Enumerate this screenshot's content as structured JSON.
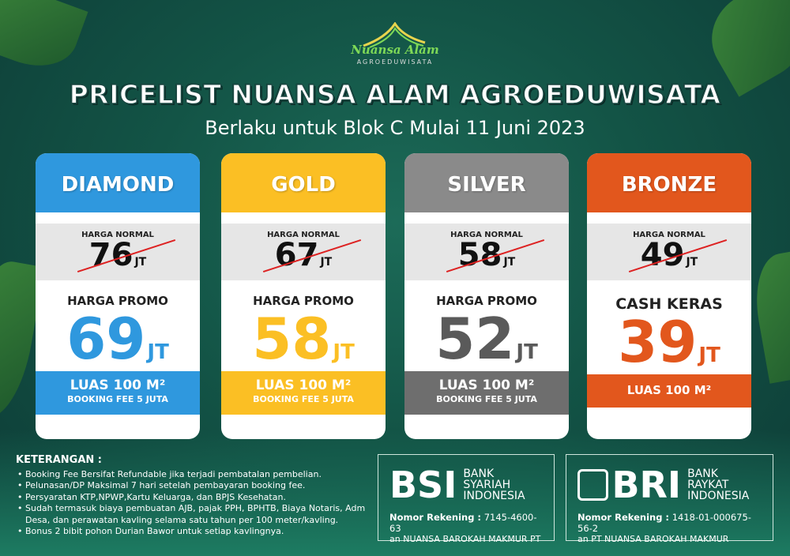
{
  "logo": {
    "brand": "Nuansa Alam",
    "sub": "AGROEDUWISATA"
  },
  "title": "PRICELIST NUANSA ALAM AGROEDUWISATA",
  "subtitle": "Berlaku untuk Blok C Mulai 11 Juni 2023",
  "colors": {
    "diamond": "#2f98de",
    "gold": "#fbbf24",
    "silver": "#8a8a8a",
    "bronze": "#e2571d",
    "background": "#135446"
  },
  "cards": [
    {
      "name": "DIAMOND",
      "normal_label": "HARGA NORMAL",
      "normal_price": "76",
      "unit": "JT",
      "promo_label": "HARGA PROMO",
      "promo_price": "69",
      "area": "LUAS 100 M²",
      "booking": "BOOKING FEE 5 JUTA"
    },
    {
      "name": "GOLD",
      "normal_label": "HARGA NORMAL",
      "normal_price": "67",
      "unit": "JT",
      "promo_label": "HARGA PROMO",
      "promo_price": "58",
      "area": "LUAS 100 M²",
      "booking": "BOOKING FEE 5 JUTA"
    },
    {
      "name": "SILVER",
      "normal_label": "HARGA NORMAL",
      "normal_price": "58",
      "unit": "JT",
      "promo_label": "HARGA PROMO",
      "promo_price": "52",
      "area": "LUAS 100 M²",
      "booking": "BOOKING FEE 5 JUTA"
    },
    {
      "name": "BRONZE",
      "normal_label": "HARGA NORMAL",
      "normal_price": "49",
      "unit": "JT",
      "promo_label": "CASH KERAS",
      "promo_price": "39",
      "area": "LUAS 100 M²"
    }
  ],
  "notes": {
    "title": "KETERANGAN :",
    "items": [
      "Booking Fee Bersifat Refundable jika terjadi pembatalan pembelian.",
      "Pelunasan/DP Maksimal 7 hari setelah pembayaran booking fee.",
      "Persyaratan KTP,NPWP,Kartu Keluarga, dan BPJS Kesehatan.",
      "Sudah termasuk biaya pembuatan AJB, pajak PPH, BPHTB, Biaya Notaris, Adm Desa, dan perawatan kavling selama satu tahun per 100 meter/kavling.",
      "Bonus 2 bibit pohon Durian Bawor untuk setiap kavlingnya."
    ]
  },
  "banks": [
    {
      "logo": "BSI",
      "name_line1": "BANK SYARIAH",
      "name_line2": "INDONESIA",
      "account_label": "Nomor Rekening :",
      "account": "7145-4600-63",
      "holder": "an NUANSA BAROKAH MAKMUR PT"
    },
    {
      "logo": "BRI",
      "name_line1": "BANK RAYKAT",
      "name_line2": "INDONESIA",
      "account_label": "Nomor Rekening :",
      "account": "1418-01-000675-56-2",
      "holder": "an PT NUANSA BAROKAH MAKMUR"
    }
  ]
}
